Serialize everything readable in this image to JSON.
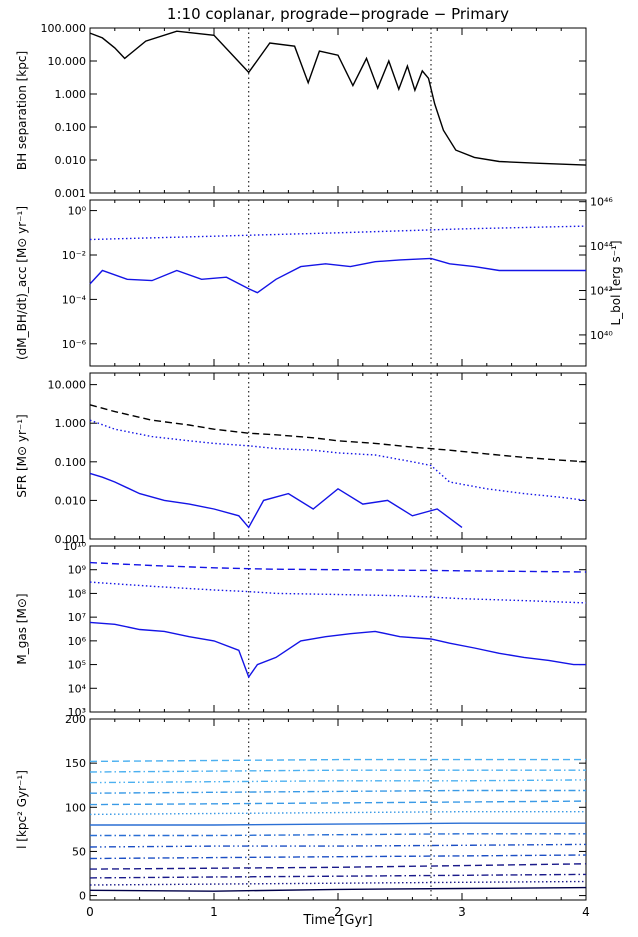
{
  "title": "1:10 coplanar, prograde−prograde − Primary",
  "xaxis": {
    "label": "Time [Gyr]",
    "ticks": [
      "0",
      "1",
      "2",
      "3",
      "4"
    ],
    "range": [
      0,
      4
    ],
    "markers": [
      1.28,
      2.75
    ]
  },
  "colors": {
    "black": "#000000",
    "blue": "#1414e6",
    "dark_navy": "#000048",
    "navy": "#1a1a8a",
    "mid_blue": "#1c4fc4",
    "blue2": "#2a6fd4",
    "light_blue": "#3a9ae6",
    "sky_blue": "#4cb0f0"
  },
  "chart_data": [
    {
      "type": "line",
      "name": "bh-separation",
      "ylabel": "BH separation [kpc]",
      "yscale": "log",
      "ylim": [
        0.001,
        100
      ],
      "yticks": [
        "0.001",
        "0.010",
        "0.100",
        "1.000",
        "10.000",
        "100.000"
      ],
      "series": [
        {
          "style": "solid",
          "color": "#000000",
          "x": [
            0,
            0.1,
            0.2,
            0.28,
            0.45,
            0.7,
            1.0,
            1.28,
            1.45,
            1.65,
            1.76,
            1.85,
            2.0,
            2.12,
            2.23,
            2.32,
            2.41,
            2.49,
            2.56,
            2.62,
            2.68,
            2.73,
            2.78,
            2.85,
            2.95,
            3.1,
            3.3,
            3.6,
            4.0
          ],
          "y": [
            70,
            50,
            25,
            12,
            40,
            80,
            60,
            4.5,
            35,
            28,
            2.2,
            20,
            15,
            1.8,
            12,
            1.5,
            10,
            1.4,
            7,
            1.3,
            5,
            3,
            0.5,
            0.08,
            0.02,
            0.012,
            0.009,
            0.008,
            0.007
          ]
        }
      ]
    },
    {
      "type": "line",
      "name": "bh-accretion",
      "ylabel": "(dM_BH/dt)_acc [M⊙ yr⁻¹]",
      "y2label": "L_bol [erg s⁻¹]",
      "yscale": "log",
      "ylim": [
        1e-07,
        3
      ],
      "yticks": [
        "10⁻⁶",
        "10⁻⁴",
        "10⁻²",
        "10⁰"
      ],
      "y2ticks": [
        "10⁴⁰",
        "10⁴²",
        "10⁴⁴",
        "10⁴⁶"
      ],
      "series": [
        {
          "style": "solid",
          "color": "#1414e6",
          "x": [
            0,
            0.1,
            0.3,
            0.5,
            0.7,
            0.9,
            1.1,
            1.28,
            1.35,
            1.5,
            1.7,
            1.9,
            2.1,
            2.3,
            2.5,
            2.75,
            2.9,
            3.1,
            3.3,
            3.5,
            3.7,
            4.0
          ],
          "y": [
            0.0005,
            0.002,
            0.0008,
            0.0007,
            0.002,
            0.0008,
            0.001,
            0.0003,
            0.0002,
            0.0008,
            0.003,
            0.004,
            0.003,
            0.005,
            0.006,
            0.007,
            0.004,
            0.003,
            0.002,
            0.002,
            0.002,
            0.002
          ]
        },
        {
          "style": "dotted",
          "color": "#1414e6",
          "x": [
            0,
            1,
            2,
            3,
            4
          ],
          "y": [
            0.05,
            0.07,
            0.1,
            0.15,
            0.2
          ]
        }
      ]
    },
    {
      "type": "line",
      "name": "sfr",
      "ylabel": "SFR [M⊙ yr⁻¹]",
      "yscale": "log",
      "ylim": [
        0.001,
        20
      ],
      "yticks": [
        "0.001",
        "0.010",
        "0.100",
        "1.000",
        "10.000"
      ],
      "series": [
        {
          "style": "dashed",
          "color": "#000000",
          "x": [
            0,
            0.2,
            0.5,
            0.8,
            1.0,
            1.28,
            1.5,
            1.8,
            2.0,
            2.3,
            2.6,
            2.9,
            3.2,
            3.5,
            3.8,
            4.0
          ],
          "y": [
            3.0,
            2.0,
            1.2,
            0.9,
            0.7,
            0.55,
            0.5,
            0.42,
            0.35,
            0.3,
            0.24,
            0.2,
            0.16,
            0.13,
            0.11,
            0.1
          ]
        },
        {
          "style": "dotted",
          "color": "#1414e6",
          "x": [
            0,
            0.2,
            0.5,
            0.8,
            1.0,
            1.28,
            1.5,
            1.8,
            2.0,
            2.3,
            2.6,
            2.75,
            2.9,
            3.2,
            3.5,
            3.8,
            4.0
          ],
          "y": [
            1.2,
            0.7,
            0.45,
            0.35,
            0.3,
            0.26,
            0.22,
            0.2,
            0.17,
            0.15,
            0.1,
            0.08,
            0.03,
            0.02,
            0.015,
            0.012,
            0.01
          ]
        },
        {
          "style": "solid",
          "color": "#1414e6",
          "x": [
            0,
            0.1,
            0.2,
            0.4,
            0.6,
            0.8,
            1.0,
            1.2,
            1.28,
            1.4,
            1.6,
            1.8,
            2.0,
            2.2,
            2.4,
            2.6,
            2.8,
            3.0
          ],
          "y": [
            0.05,
            0.04,
            0.03,
            0.015,
            0.01,
            0.008,
            0.006,
            0.004,
            0.002,
            0.01,
            0.015,
            0.006,
            0.02,
            0.008,
            0.01,
            0.004,
            0.006,
            0.002
          ]
        }
      ]
    },
    {
      "type": "line",
      "name": "gas-mass",
      "ylabel": "M_gas [M⊙]",
      "yscale": "log",
      "ylim": [
        1000,
        10000000000.0
      ],
      "yticks": [
        "10³",
        "10⁴",
        "10⁵",
        "10⁶",
        "10⁷",
        "10⁸",
        "10⁹",
        "10¹⁰"
      ],
      "series": [
        {
          "style": "dashed",
          "color": "#1414e6",
          "x": [
            0,
            0.5,
            1.0,
            1.28,
            1.5,
            2.0,
            2.5,
            3.0,
            3.5,
            4.0
          ],
          "y": [
            2000000000.0,
            1500000000.0,
            1200000000.0,
            1100000000.0,
            1050000000.0,
            1000000000.0,
            950000000.0,
            900000000.0,
            850000000.0,
            800000000.0
          ]
        },
        {
          "style": "dotted",
          "color": "#1414e6",
          "x": [
            0,
            0.5,
            1.0,
            1.28,
            1.5,
            2.0,
            2.5,
            2.75,
            3.0,
            3.5,
            4.0
          ],
          "y": [
            300000000.0,
            200000000.0,
            140000000.0,
            120000000.0,
            100000000.0,
            90000000.0,
            80000000.0,
            70000000.0,
            60000000.0,
            50000000.0,
            40000000.0
          ]
        },
        {
          "style": "solid",
          "color": "#1414e6",
          "x": [
            0,
            0.2,
            0.4,
            0.6,
            0.8,
            1.0,
            1.2,
            1.28,
            1.35,
            1.5,
            1.7,
            1.9,
            2.1,
            2.3,
            2.5,
            2.75,
            2.9,
            3.1,
            3.3,
            3.5,
            3.7,
            3.9,
            4.0
          ],
          "y": [
            6000000.0,
            5000000.0,
            3000000.0,
            2500000.0,
            1500000.0,
            1000000.0,
            400000.0,
            30000.0,
            100000.0,
            200000.0,
            1000000.0,
            1500000.0,
            2000000.0,
            2500000.0,
            1500000.0,
            1200000.0,
            800000.0,
            500000.0,
            300000.0,
            200000.0,
            150000.0,
            100000.0,
            100000.0
          ]
        }
      ]
    },
    {
      "type": "line",
      "name": "angular-momentum",
      "ylabel": "l [kpc² Gyr⁻¹]",
      "yscale": "linear",
      "ylim": [
        -5,
        200
      ],
      "yticks": [
        "0",
        "50",
        "100",
        "150",
        "200"
      ],
      "series": [
        {
          "style": "solid",
          "color": "#000048",
          "x": [
            0,
            1,
            2,
            3,
            4
          ],
          "y": [
            6,
            5,
            7,
            8,
            9
          ]
        },
        {
          "style": "dotted",
          "color": "#1a1a8a",
          "x": [
            0,
            1,
            2,
            3,
            4
          ],
          "y": [
            12,
            13,
            14,
            15,
            16
          ]
        },
        {
          "style": "dash-dot",
          "color": "#1a1a8a",
          "x": [
            0,
            1,
            2,
            3,
            4
          ],
          "y": [
            20,
            21,
            22,
            23,
            24
          ]
        },
        {
          "style": "dashed",
          "color": "#1a1a8a",
          "x": [
            0,
            1,
            2,
            3,
            4
          ],
          "y": [
            30,
            31,
            32,
            34,
            36
          ]
        },
        {
          "style": "dash-dot",
          "color": "#1c4fc4",
          "x": [
            0,
            1,
            2,
            3,
            4
          ],
          "y": [
            42,
            43,
            44,
            45,
            46
          ]
        },
        {
          "style": "dash-dot-dot",
          "color": "#1c4fc4",
          "x": [
            0,
            1,
            2,
            3,
            4
          ],
          "y": [
            55,
            56,
            56,
            57,
            58
          ]
        },
        {
          "style": "dash-dot",
          "color": "#2a6fd4",
          "x": [
            0,
            1,
            2,
            3,
            4
          ],
          "y": [
            68,
            68,
            69,
            70,
            70
          ]
        },
        {
          "style": "solid",
          "color": "#2a6fd4",
          "x": [
            0,
            1,
            2,
            3,
            4
          ],
          "y": [
            80,
            80,
            81,
            82,
            82
          ]
        },
        {
          "style": "dotted",
          "color": "#3a9ae6",
          "x": [
            0,
            1,
            2,
            3,
            4
          ],
          "y": [
            92,
            93,
            94,
            95,
            95
          ]
        },
        {
          "style": "dashed",
          "color": "#3a9ae6",
          "x": [
            0,
            1,
            2,
            3,
            4
          ],
          "y": [
            103,
            104,
            105,
            106,
            107
          ]
        },
        {
          "style": "dash-dot",
          "color": "#3a9ae6",
          "x": [
            0,
            1,
            2,
            3,
            4
          ],
          "y": [
            116,
            117,
            118,
            119,
            119
          ]
        },
        {
          "style": "dash-dot-dot",
          "color": "#4cb0f0",
          "x": [
            0,
            1,
            2,
            3,
            4
          ],
          "y": [
            128,
            129,
            130,
            130,
            131
          ]
        },
        {
          "style": "dash-dot",
          "color": "#4cb0f0",
          "x": [
            0,
            1,
            2,
            3,
            4
          ],
          "y": [
            140,
            141,
            142,
            142,
            142
          ]
        },
        {
          "style": "dashed",
          "color": "#4cb0f0",
          "x": [
            0,
            1,
            2,
            3,
            4
          ],
          "y": [
            152,
            153,
            154,
            154,
            154
          ]
        }
      ]
    }
  ]
}
